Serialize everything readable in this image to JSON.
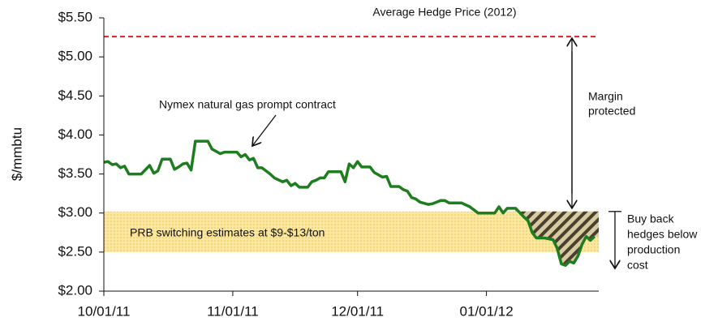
{
  "chart_data": {
    "type": "line",
    "y_label": "$/mmbtu",
    "annotations": {
      "hedge": "Average Hedge Price (2012)",
      "nymex": "Nymex natural gas prompt contract",
      "margin": [
        "Margin",
        "protected"
      ],
      "buyback": [
        "Buy back",
        "hedges below",
        "production",
        "cost"
      ]
    },
    "hedge_price": 5.26,
    "band": {
      "label": "PRB switching estimates at $9-$13/ton",
      "range": [
        2.5,
        3.02
      ]
    },
    "xlim": [
      "10/01/11",
      "01/28/12"
    ],
    "xticks": [
      "10/01/11",
      "11/01/11",
      "12/01/11",
      "01/01/12"
    ],
    "ylim": [
      2,
      5.5
    ],
    "yticks": [
      {
        "value": 2,
        "label": "$2.00"
      },
      {
        "value": 2.5,
        "label": "$2.50"
      },
      {
        "value": 3,
        "label": "$3.00"
      },
      {
        "value": 3.5,
        "label": "$3.50"
      },
      {
        "value": 4,
        "label": "$4.00"
      },
      {
        "value": 4.5,
        "label": "$4.50"
      },
      {
        "value": 5,
        "label": "$5.00"
      },
      {
        "value": 5.5,
        "label": "$5.50"
      }
    ],
    "x": [
      "10/01/11",
      "10/02/11",
      "10/03/11",
      "10/04/11",
      "10/05/11",
      "10/06/11",
      "10/07/11",
      "10/09/11",
      "10/10/11",
      "10/12/11",
      "10/13/11",
      "10/14/11",
      "10/15/11",
      "10/17/11",
      "10/18/11",
      "10/19/11",
      "10/20/11",
      "10/21/11",
      "10/22/11",
      "10/23/11",
      "10/26/11",
      "10/27/11",
      "10/29/11",
      "10/30/11",
      "11/02/11",
      "11/03/11",
      "11/04/11",
      "11/05/11",
      "11/06/11",
      "11/07/11",
      "11/08/11",
      "11/10/11",
      "11/11/11",
      "11/13/11",
      "11/14/11",
      "11/15/11",
      "11/16/11",
      "11/17/11",
      "11/19/11",
      "11/20/11",
      "11/21/11",
      "11/22/11",
      "11/23/11",
      "11/24/11",
      "11/27/11",
      "11/28/11",
      "11/29/11",
      "11/30/11",
      "12/01/11",
      "12/02/11",
      "12/04/11",
      "12/05/11",
      "12/07/11",
      "12/08/11",
      "12/09/11",
      "12/11/11",
      "12/12/11",
      "12/13/11",
      "12/14/11",
      "12/15/11",
      "12/16/11",
      "12/18/11",
      "12/19/11",
      "12/21/11",
      "12/22/11",
      "12/23/11",
      "12/26/11",
      "12/28/11",
      "12/30/11",
      "01/03/12",
      "01/04/12",
      "01/05/12",
      "01/06/12",
      "01/08/12",
      "01/10/12",
      "01/11/12",
      "01/12/12",
      "01/13/12",
      "01/15/12",
      "01/17/12",
      "01/18/12",
      "01/19/12",
      "01/20/12",
      "01/21/12",
      "01/22/12",
      "01/23/12",
      "01/24/12",
      "01/25/12",
      "01/26/12",
      "01/27/12"
    ],
    "series": [
      {
        "name": "Nymex natural gas prompt contract",
        "color": "#1e7d1e",
        "values": [
          3.65,
          3.66,
          3.62,
          3.63,
          3.58,
          3.6,
          3.5,
          3.5,
          3.5,
          3.61,
          3.51,
          3.54,
          3.69,
          3.69,
          3.56,
          3.59,
          3.63,
          3.64,
          3.55,
          3.92,
          3.92,
          3.82,
          3.76,
          3.78,
          3.78,
          3.72,
          3.75,
          3.68,
          3.7,
          3.58,
          3.58,
          3.5,
          3.45,
          3.4,
          3.42,
          3.35,
          3.38,
          3.33,
          3.33,
          3.4,
          3.42,
          3.45,
          3.45,
          3.53,
          3.53,
          3.4,
          3.63,
          3.58,
          3.66,
          3.59,
          3.59,
          3.52,
          3.46,
          3.47,
          3.34,
          3.34,
          3.3,
          3.28,
          3.2,
          3.18,
          3.14,
          3.11,
          3.12,
          3.16,
          3.16,
          3.13,
          3.13,
          3.08,
          3.0,
          3.0,
          3.08,
          3.0,
          3.06,
          3.06,
          2.95,
          2.9,
          2.75,
          2.68,
          2.68,
          2.66,
          2.55,
          2.35,
          2.33,
          2.38,
          2.36,
          2.45,
          2.6,
          2.7,
          2.65,
          2.7
        ]
      }
    ]
  }
}
